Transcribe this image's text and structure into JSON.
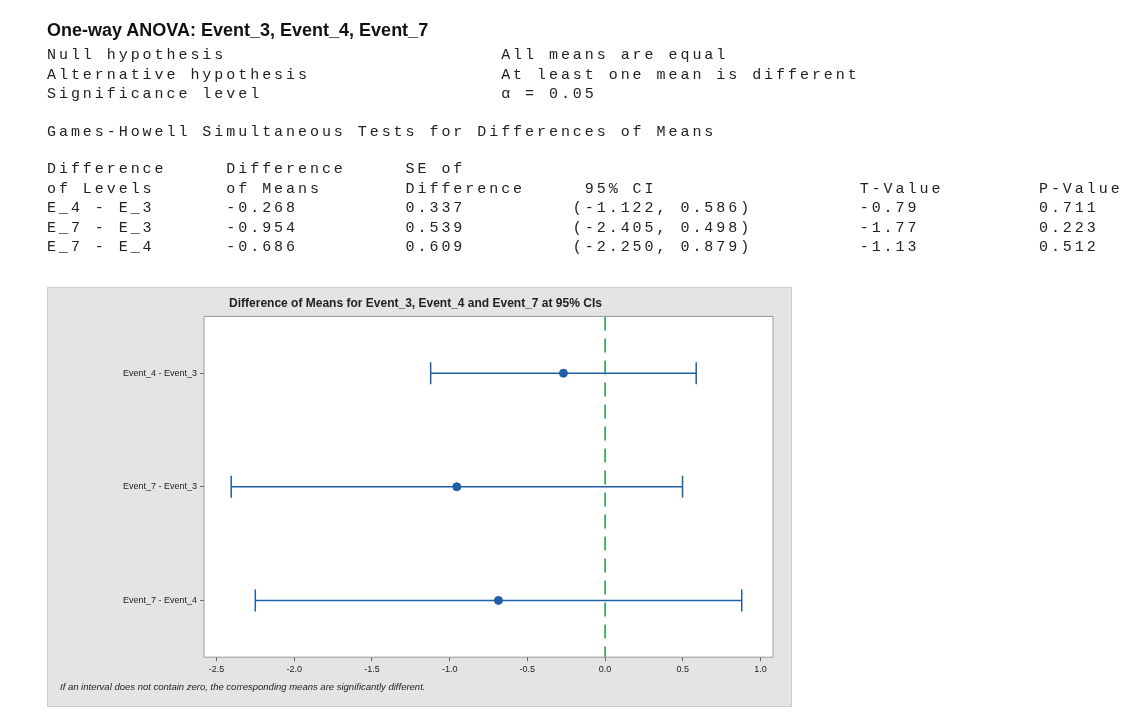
{
  "chart_data": {
    "type": "scatter",
    "orientation": "horizontal",
    "title": "One-way ANOVA: Event_3, Event_4, Event_7",
    "subtitle": "Difference of Means for Event_3, Event_4 and Event_7 at 95% CIs",
    "categories": [
      "Event_4 - Event_3",
      "Event_7 - Event_3",
      "Event_7 - Event_4"
    ],
    "color": "#1f5fa8",
    "values": [
      -0.268,
      -0.954,
      -0.686
    ],
    "errors": [
      [
        -1.122,
        0.586
      ],
      [
        -2.405,
        0.498
      ],
      [
        -2.25,
        0.879
      ]
    ],
    "marker": "circle",
    "xlim": [
      -2.58,
      1.08
    ],
    "xticks": [
      {
        "value": -2.5,
        "label": "-2.5"
      },
      {
        "value": -2,
        "label": "-2.0"
      },
      {
        "value": -1.5,
        "label": "-1.5"
      },
      {
        "value": -1,
        "label": "-1.0"
      },
      {
        "value": -0.5,
        "label": "-0.5"
      },
      {
        "value": 0,
        "label": "0.0"
      },
      {
        "value": 0.5,
        "label": "0.5"
      },
      {
        "value": 1,
        "label": "1.0"
      }
    ],
    "ref_lines": [
      {
        "axis": "x",
        "value": 0,
        "color": "#1a9e3a",
        "line_style": "dashed"
      }
    ],
    "annotations": [
      "Null hypothesis                       All means are equal",
      "Alternative hypothesis                At least one mean is different",
      "Significance level                    α = 0.05",
      "Games-Howell Simultaneous Tests for Differences of Means",
      "Difference     Difference     SE of",
      "of Levels      of Means       Difference     95% CI                 T-Value        P-Value",
      "E_4 - E_3      -0.268         0.337         (-1.122, 0.586)         -0.79          0.711",
      "E_7 - E_3      -0.954         0.539         (-2.405, 0.498)         -1.77          0.223",
      "E_7 - E_4      -0.686         0.609         (-2.250, 0.879)         -1.13          0.512",
      "If an interval does not contain zero, the corresponding means are significantly different."
    ]
  }
}
